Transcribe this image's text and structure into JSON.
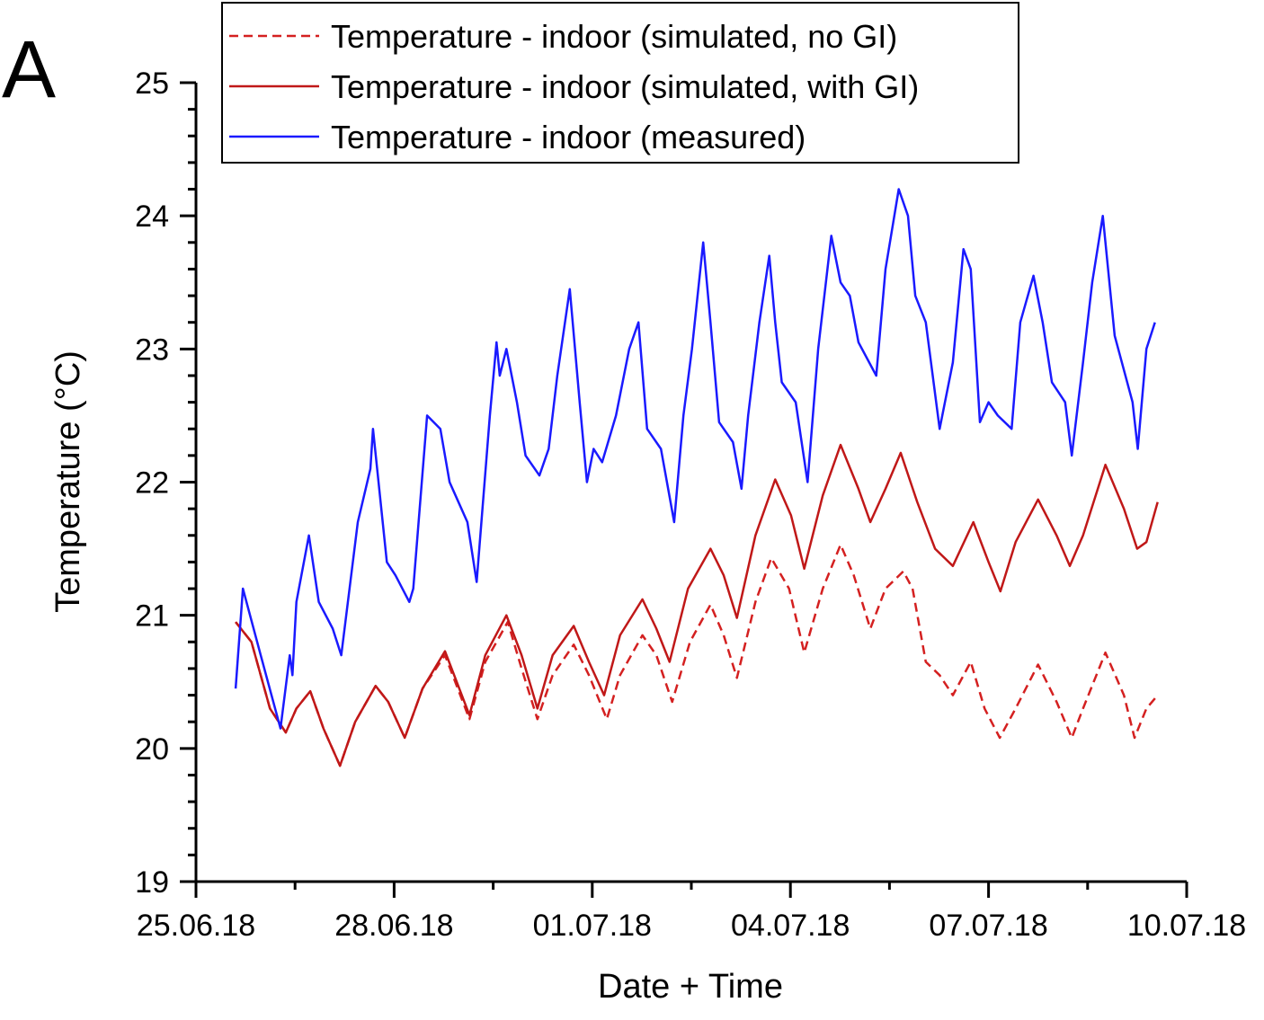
{
  "chart_data": {
    "type": "line",
    "panel_label": "A",
    "xlabel": "Date + Time",
    "ylabel": "Temperature (°C)",
    "xlim_days": [
      0,
      15
    ],
    "x_unit": "days since 25.06.18 00:00",
    "x_ticks": [
      {
        "day": 0,
        "label": "25.06.18"
      },
      {
        "day": 3,
        "label": "28.06.18"
      },
      {
        "day": 6,
        "label": "01.07.18"
      },
      {
        "day": 9,
        "label": "04.07.18"
      },
      {
        "day": 12,
        "label": "07.07.18"
      },
      {
        "day": 15,
        "label": "10.07.18"
      }
    ],
    "ylim": [
      19,
      25
    ],
    "y_ticks": [
      "19",
      "20",
      "21",
      "22",
      "23",
      "24",
      "25"
    ],
    "grid": false,
    "legend_placement": "top",
    "series": [
      {
        "name": "Temperature - indoor (simulated, no GI)",
        "color": "#d42020",
        "dash": true,
        "x": [
          0.6,
          0.84,
          1.12,
          1.36,
          1.52,
          1.73,
          1.93,
          2.18,
          2.41,
          2.72,
          2.91,
          3.16,
          3.43,
          3.77,
          4.14,
          4.38,
          4.72,
          4.93,
          5.17,
          5.4,
          5.72,
          5.95,
          6.22,
          6.42,
          6.76,
          6.97,
          7.21,
          7.48,
          7.79,
          7.99,
          8.19,
          8.47,
          8.71,
          8.98,
          9.21,
          9.49,
          9.76,
          9.96,
          10.21,
          10.44,
          10.71,
          10.85,
          11.05,
          11.26,
          11.46,
          11.73,
          11.94,
          12.17,
          12.41,
          12.75,
          13.03,
          13.26,
          13.43,
          13.77,
          14.05,
          14.21,
          14.39,
          14.56
        ],
        "y": [
          20.95,
          20.8,
          20.3,
          20.12,
          20.3,
          20.43,
          20.15,
          19.87,
          20.2,
          20.47,
          20.35,
          20.08,
          20.45,
          20.7,
          20.22,
          20.65,
          20.95,
          20.6,
          20.22,
          20.55,
          20.78,
          20.55,
          20.22,
          20.55,
          20.85,
          20.7,
          20.35,
          20.8,
          21.08,
          20.85,
          20.53,
          21.1,
          21.43,
          21.2,
          20.72,
          21.2,
          21.53,
          21.3,
          20.9,
          21.2,
          21.33,
          21.2,
          20.65,
          20.55,
          20.4,
          20.65,
          20.3,
          20.08,
          20.3,
          20.63,
          20.35,
          20.08,
          20.3,
          20.72,
          20.4,
          20.08,
          20.3,
          20.4
        ]
      },
      {
        "name": "Temperature - indoor (simulated, with GI)",
        "color": "#c01818",
        "dash": false,
        "x": [
          0.6,
          0.84,
          1.12,
          1.36,
          1.52,
          1.73,
          1.93,
          2.18,
          2.41,
          2.72,
          2.91,
          3.16,
          3.43,
          3.77,
          4.14,
          4.38,
          4.7,
          4.93,
          5.17,
          5.4,
          5.72,
          5.95,
          6.18,
          6.42,
          6.76,
          6.97,
          7.17,
          7.45,
          7.79,
          7.99,
          8.19,
          8.47,
          8.77,
          9.01,
          9.21,
          9.49,
          9.76,
          10.03,
          10.21,
          10.44,
          10.67,
          10.92,
          11.19,
          11.46,
          11.77,
          12.0,
          12.18,
          12.41,
          12.75,
          13.03,
          13.23,
          13.43,
          13.77,
          14.05,
          14.25,
          14.39,
          14.56
        ],
        "y": [
          20.95,
          20.8,
          20.3,
          20.12,
          20.3,
          20.43,
          20.15,
          19.87,
          20.2,
          20.47,
          20.35,
          20.08,
          20.45,
          20.73,
          20.25,
          20.7,
          21.0,
          20.7,
          20.3,
          20.7,
          20.92,
          20.65,
          20.4,
          20.85,
          21.12,
          20.9,
          20.65,
          21.2,
          21.5,
          21.3,
          20.98,
          21.6,
          22.02,
          21.75,
          21.35,
          21.9,
          22.28,
          21.95,
          21.7,
          21.95,
          22.22,
          21.85,
          21.5,
          21.37,
          21.7,
          21.4,
          21.18,
          21.55,
          21.87,
          21.6,
          21.37,
          21.6,
          22.13,
          21.8,
          21.5,
          21.55,
          21.85
        ]
      },
      {
        "name": "Temperature - indoor (measured)",
        "color": "#1a1aff",
        "dash": false,
        "x": [
          0.6,
          0.71,
          0.98,
          1.28,
          1.42,
          1.46,
          1.52,
          1.71,
          1.86,
          2.07,
          2.2,
          2.45,
          2.64,
          2.68,
          2.89,
          3.02,
          3.23,
          3.29,
          3.5,
          3.7,
          3.84,
          4.11,
          4.25,
          4.45,
          4.55,
          4.6,
          4.7,
          4.86,
          4.99,
          5.2,
          5.34,
          5.47,
          5.66,
          5.81,
          5.92,
          6.02,
          6.15,
          6.36,
          6.56,
          6.7,
          6.83,
          7.04,
          7.24,
          7.38,
          7.51,
          7.68,
          7.79,
          7.92,
          8.13,
          8.26,
          8.36,
          8.53,
          8.68,
          8.77,
          8.87,
          9.08,
          9.26,
          9.42,
          9.62,
          9.76,
          9.9,
          10.03,
          10.3,
          10.44,
          10.64,
          10.78,
          10.89,
          11.05,
          11.26,
          11.46,
          11.62,
          11.73,
          11.87,
          12.0,
          12.14,
          12.35,
          12.48,
          12.68,
          12.82,
          12.96,
          13.16,
          13.26,
          13.43,
          13.57,
          13.73,
          13.91,
          14.18,
          14.26,
          14.39,
          14.52
        ],
        "y": [
          20.45,
          21.2,
          20.7,
          20.15,
          20.7,
          20.55,
          21.1,
          21.6,
          21.1,
          20.9,
          20.7,
          21.7,
          22.1,
          22.4,
          21.4,
          21.3,
          21.1,
          21.2,
          22.5,
          22.4,
          22.0,
          21.7,
          21.25,
          22.5,
          23.05,
          22.8,
          23.0,
          22.6,
          22.2,
          22.05,
          22.25,
          22.8,
          23.45,
          22.6,
          22.0,
          22.25,
          22.15,
          22.5,
          23.0,
          23.2,
          22.4,
          22.25,
          21.7,
          22.5,
          23.0,
          23.8,
          23.2,
          22.45,
          22.3,
          21.95,
          22.5,
          23.2,
          23.7,
          23.2,
          22.75,
          22.6,
          22.0,
          23.0,
          23.85,
          23.5,
          23.4,
          23.05,
          22.8,
          23.6,
          24.2,
          24.0,
          23.4,
          23.2,
          22.4,
          22.9,
          23.75,
          23.6,
          22.45,
          22.6,
          22.5,
          22.4,
          23.2,
          23.55,
          23.2,
          22.75,
          22.6,
          22.2,
          22.9,
          23.5,
          24.0,
          23.1,
          22.6,
          22.25,
          23.0,
          23.2
        ]
      }
    ]
  }
}
